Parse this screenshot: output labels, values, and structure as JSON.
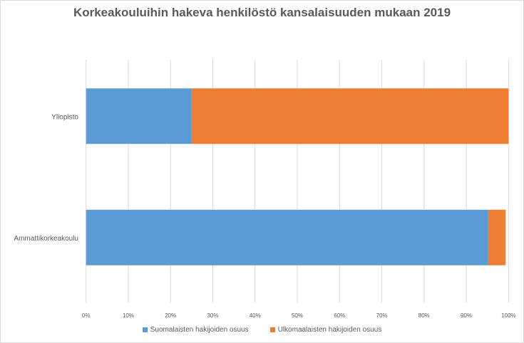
{
  "chart_data": {
    "type": "bar",
    "orientation": "horizontal",
    "stacked": true,
    "title": "Korkeakouluihin hakeva henkilöstö kansalaisuuden mukaan 2019",
    "categories": [
      "Yliopisto",
      "Ammattikorkeakoulu"
    ],
    "series": [
      {
        "name": "Suomalaisten hakijoiden osuus",
        "color": "#5b9bd5",
        "values": [
          25.0,
          95.2
        ]
      },
      {
        "name": "Ulkomaalaisten hakijoiden osuus",
        "color": "#ed7d31",
        "values": [
          75.0,
          4.1
        ]
      }
    ],
    "xlim": [
      0,
      100
    ],
    "x_ticks": [
      "0%",
      "10%",
      "20%",
      "30%",
      "40%",
      "50%",
      "60%",
      "70%",
      "80%",
      "90%",
      "100%"
    ],
    "grid": "vertical",
    "legend": "bottom"
  }
}
